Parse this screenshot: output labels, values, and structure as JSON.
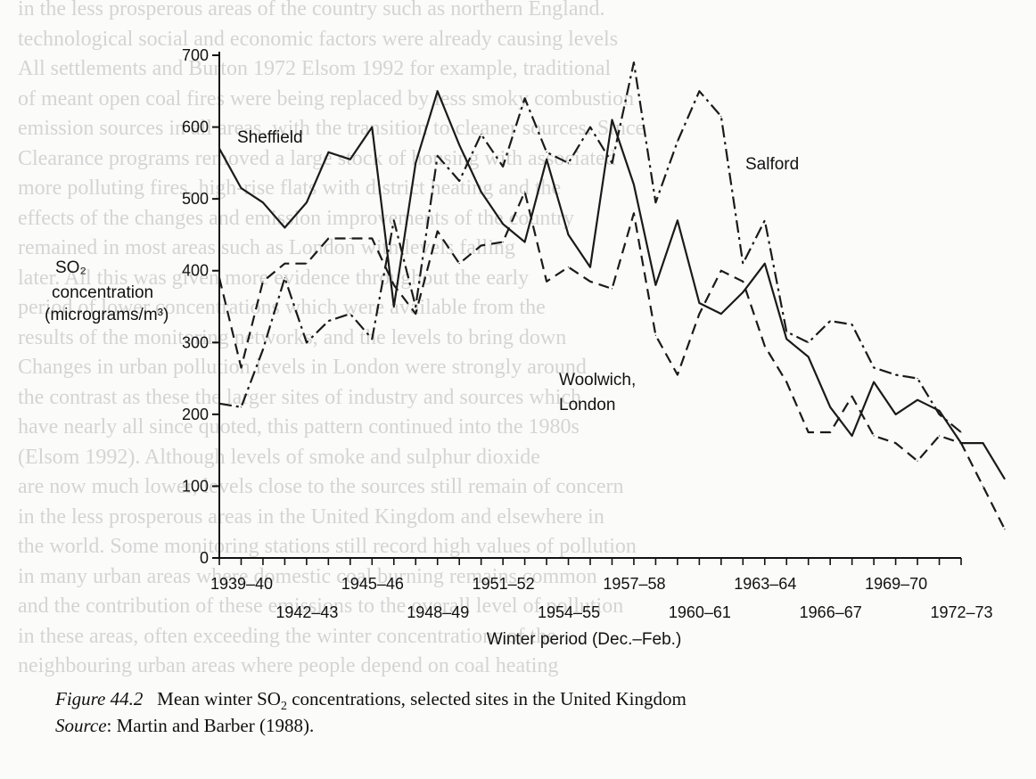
{
  "background_text": [
    "in the less prosperous areas of the country such as northern England.",
    "technological social and economic factors were already causing levels",
    "All settlements and Burton 1972 Elsom 1992 for example, traditional",
    "of meant open coal fires were being replaced by less smoky combustion",
    "emission sources in all areas, with the transition to cleaner sources. Since",
    "Clearance programs removed a large stock of housing with associated",
    "more polluting fires, high-rise flats with district heating and the",
    "effects of the changes and emission improvements of the country",
    "remained in most areas such as London with levels falling",
    "later. All this was given more evidence throughout the early",
    "period of lower concentrations which were available from the",
    "results of the monitoring networks, and the levels to bring down",
    "Changes in urban pollution levels in London were strongly around",
    "the contrast as these the larger sites of industry and sources which",
    "have nearly all since quoted, this pattern continued into the 1980s",
    "(Elsom 1992). Although levels of smoke and sulphur dioxide",
    "are now much lower, levels close to the sources still remain of concern",
    "in the less prosperous areas in the United Kingdom and elsewhere in",
    "the world. Some monitoring stations still record high values of pollution",
    "in many urban areas where domestic coal burning remains common",
    "and the contribution of these emissions to the overall level of pollution",
    "in these areas, often exceeding the winter concentrations of the",
    "neighbouring urban areas where people depend on coal heating"
  ],
  "chart_data": {
    "type": "line",
    "xlabel": "Winter period (Dec.–Feb.)",
    "ylabel": [
      "SO₂",
      "concentration",
      "(micrograms/m³)"
    ],
    "ylim": [
      0,
      700
    ],
    "y_ticks": [
      "0",
      "100",
      "200",
      "300",
      "400",
      "500",
      "600",
      "700"
    ],
    "x_tick_labels_upper": [
      "1939–40",
      "1945–46",
      "1951–52",
      "1957–58",
      "1963–64",
      "1969–70"
    ],
    "x_tick_labels_lower": [
      "1942–43",
      "1948–49",
      "1954–55",
      "1960–61",
      "1966–67",
      "1972–73"
    ],
    "x_start_year": 1939,
    "x_end_year": 1973,
    "series": [
      {
        "name": "Sheffield",
        "style": "solid",
        "label_lines": [
          "Sheffield"
        ],
        "values": [
          570,
          515,
          495,
          460,
          495,
          565,
          555,
          600,
          350,
          550,
          650,
          575,
          510,
          465,
          440,
          555,
          450,
          405,
          610,
          520,
          380,
          470,
          355,
          340,
          370,
          410,
          305,
          280,
          210,
          170,
          245,
          200,
          220,
          205,
          160,
          160,
          110
        ]
      },
      {
        "name": "Salford",
        "style": "dash-dot",
        "label_lines": [
          "Salford"
        ],
        "values": [
          215,
          210,
          290,
          390,
          300,
          330,
          340,
          305,
          470,
          350,
          560,
          525,
          590,
          545,
          640,
          565,
          550,
          600,
          550,
          690,
          495,
          580,
          650,
          615,
          410,
          470,
          315,
          300,
          330,
          325,
          265,
          255,
          250,
          200,
          175
        ]
      },
      {
        "name": "Woolwich, London",
        "style": "dashed",
        "label_lines": [
          "Woolwich,",
          "London"
        ],
        "values": [
          390,
          265,
          385,
          410,
          410,
          445,
          445,
          445,
          380,
          340,
          455,
          410,
          435,
          440,
          510,
          385,
          405,
          385,
          375,
          480,
          310,
          255,
          340,
          400,
          385,
          295,
          245,
          175,
          175,
          225,
          170,
          160,
          135,
          170,
          160,
          100,
          40
        ]
      }
    ]
  },
  "caption": {
    "figure_label": "Figure 44.2",
    "title_before": "Mean winter SO",
    "title_sub": "2",
    "title_after": " concentrations, selected sites in the United Kingdom",
    "source_label": "Source",
    "source_text": ": Martin and Barber (1988)."
  }
}
